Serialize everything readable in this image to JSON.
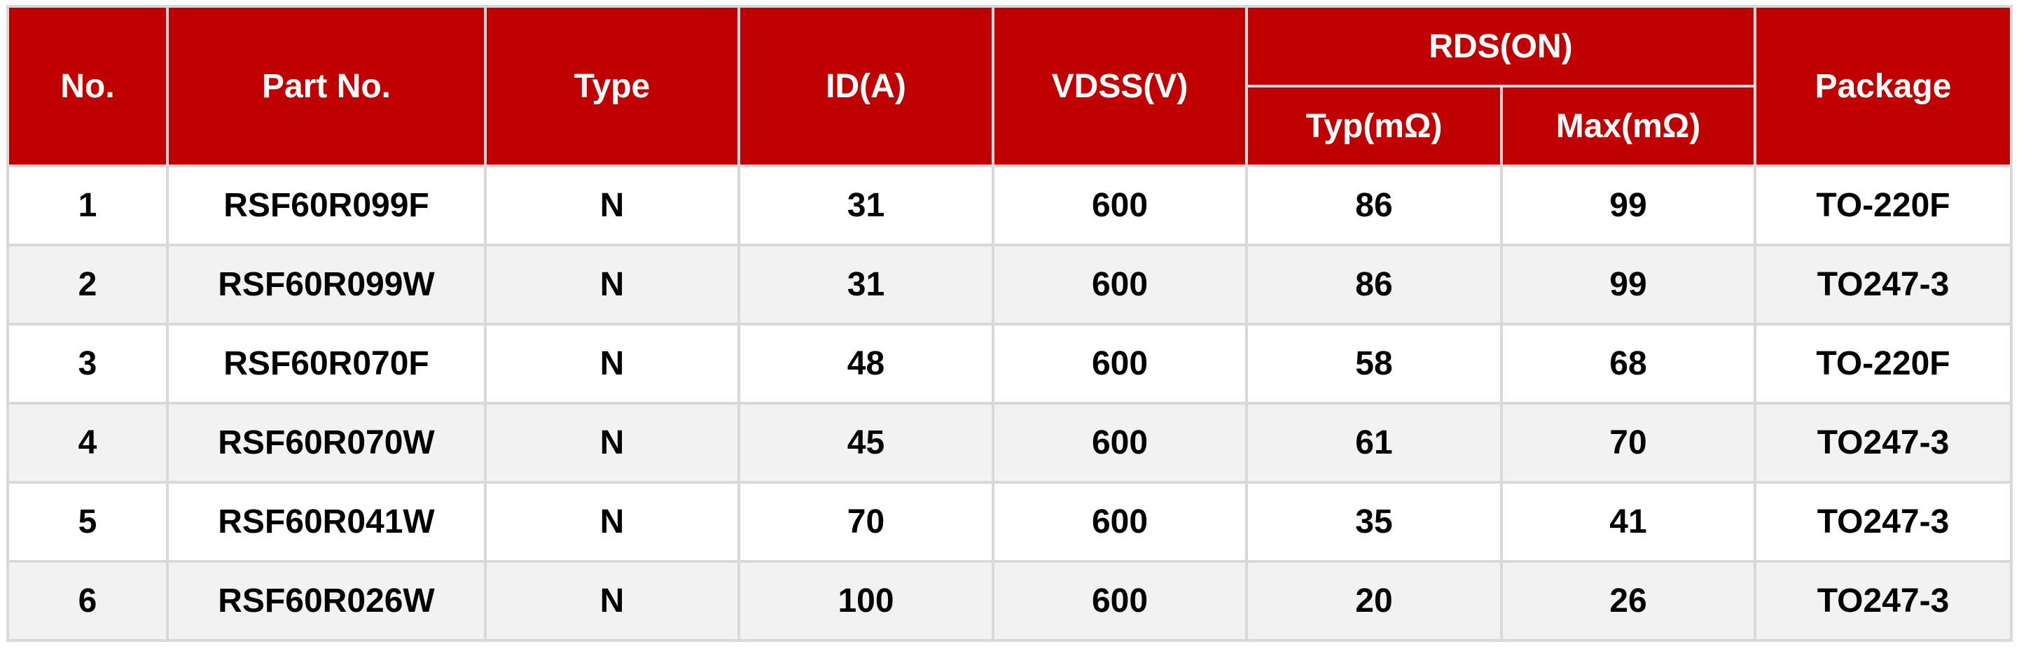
{
  "table": {
    "headers": [
      "No.",
      "Part No.",
      "Type",
      "ID(A)",
      "VDSS(V)",
      "RDS(ON)",
      "Package"
    ],
    "subheaders": [
      "Typ(mΩ)",
      "Max(mΩ)"
    ],
    "rows": [
      [
        "1",
        "RSF60R099F",
        "N",
        "31",
        "600",
        "86",
        "99",
        "TO-220F"
      ],
      [
        "2",
        "RSF60R099W",
        "N",
        "31",
        "600",
        "86",
        "99",
        "TO247-3"
      ],
      [
        "3",
        "RSF60R070F",
        "N",
        "48",
        "600",
        "58",
        "68",
        "TO-220F"
      ],
      [
        "4",
        "RSF60R070W",
        "N",
        "45",
        "600",
        "61",
        "70",
        "TO247-3"
      ],
      [
        "5",
        "RSF60R041W",
        "N",
        "70",
        "600",
        "35",
        "41",
        "TO247-3"
      ],
      [
        "6",
        "RSF60R026W",
        "N",
        "100",
        "600",
        "20",
        "26",
        "TO247-3"
      ]
    ]
  }
}
